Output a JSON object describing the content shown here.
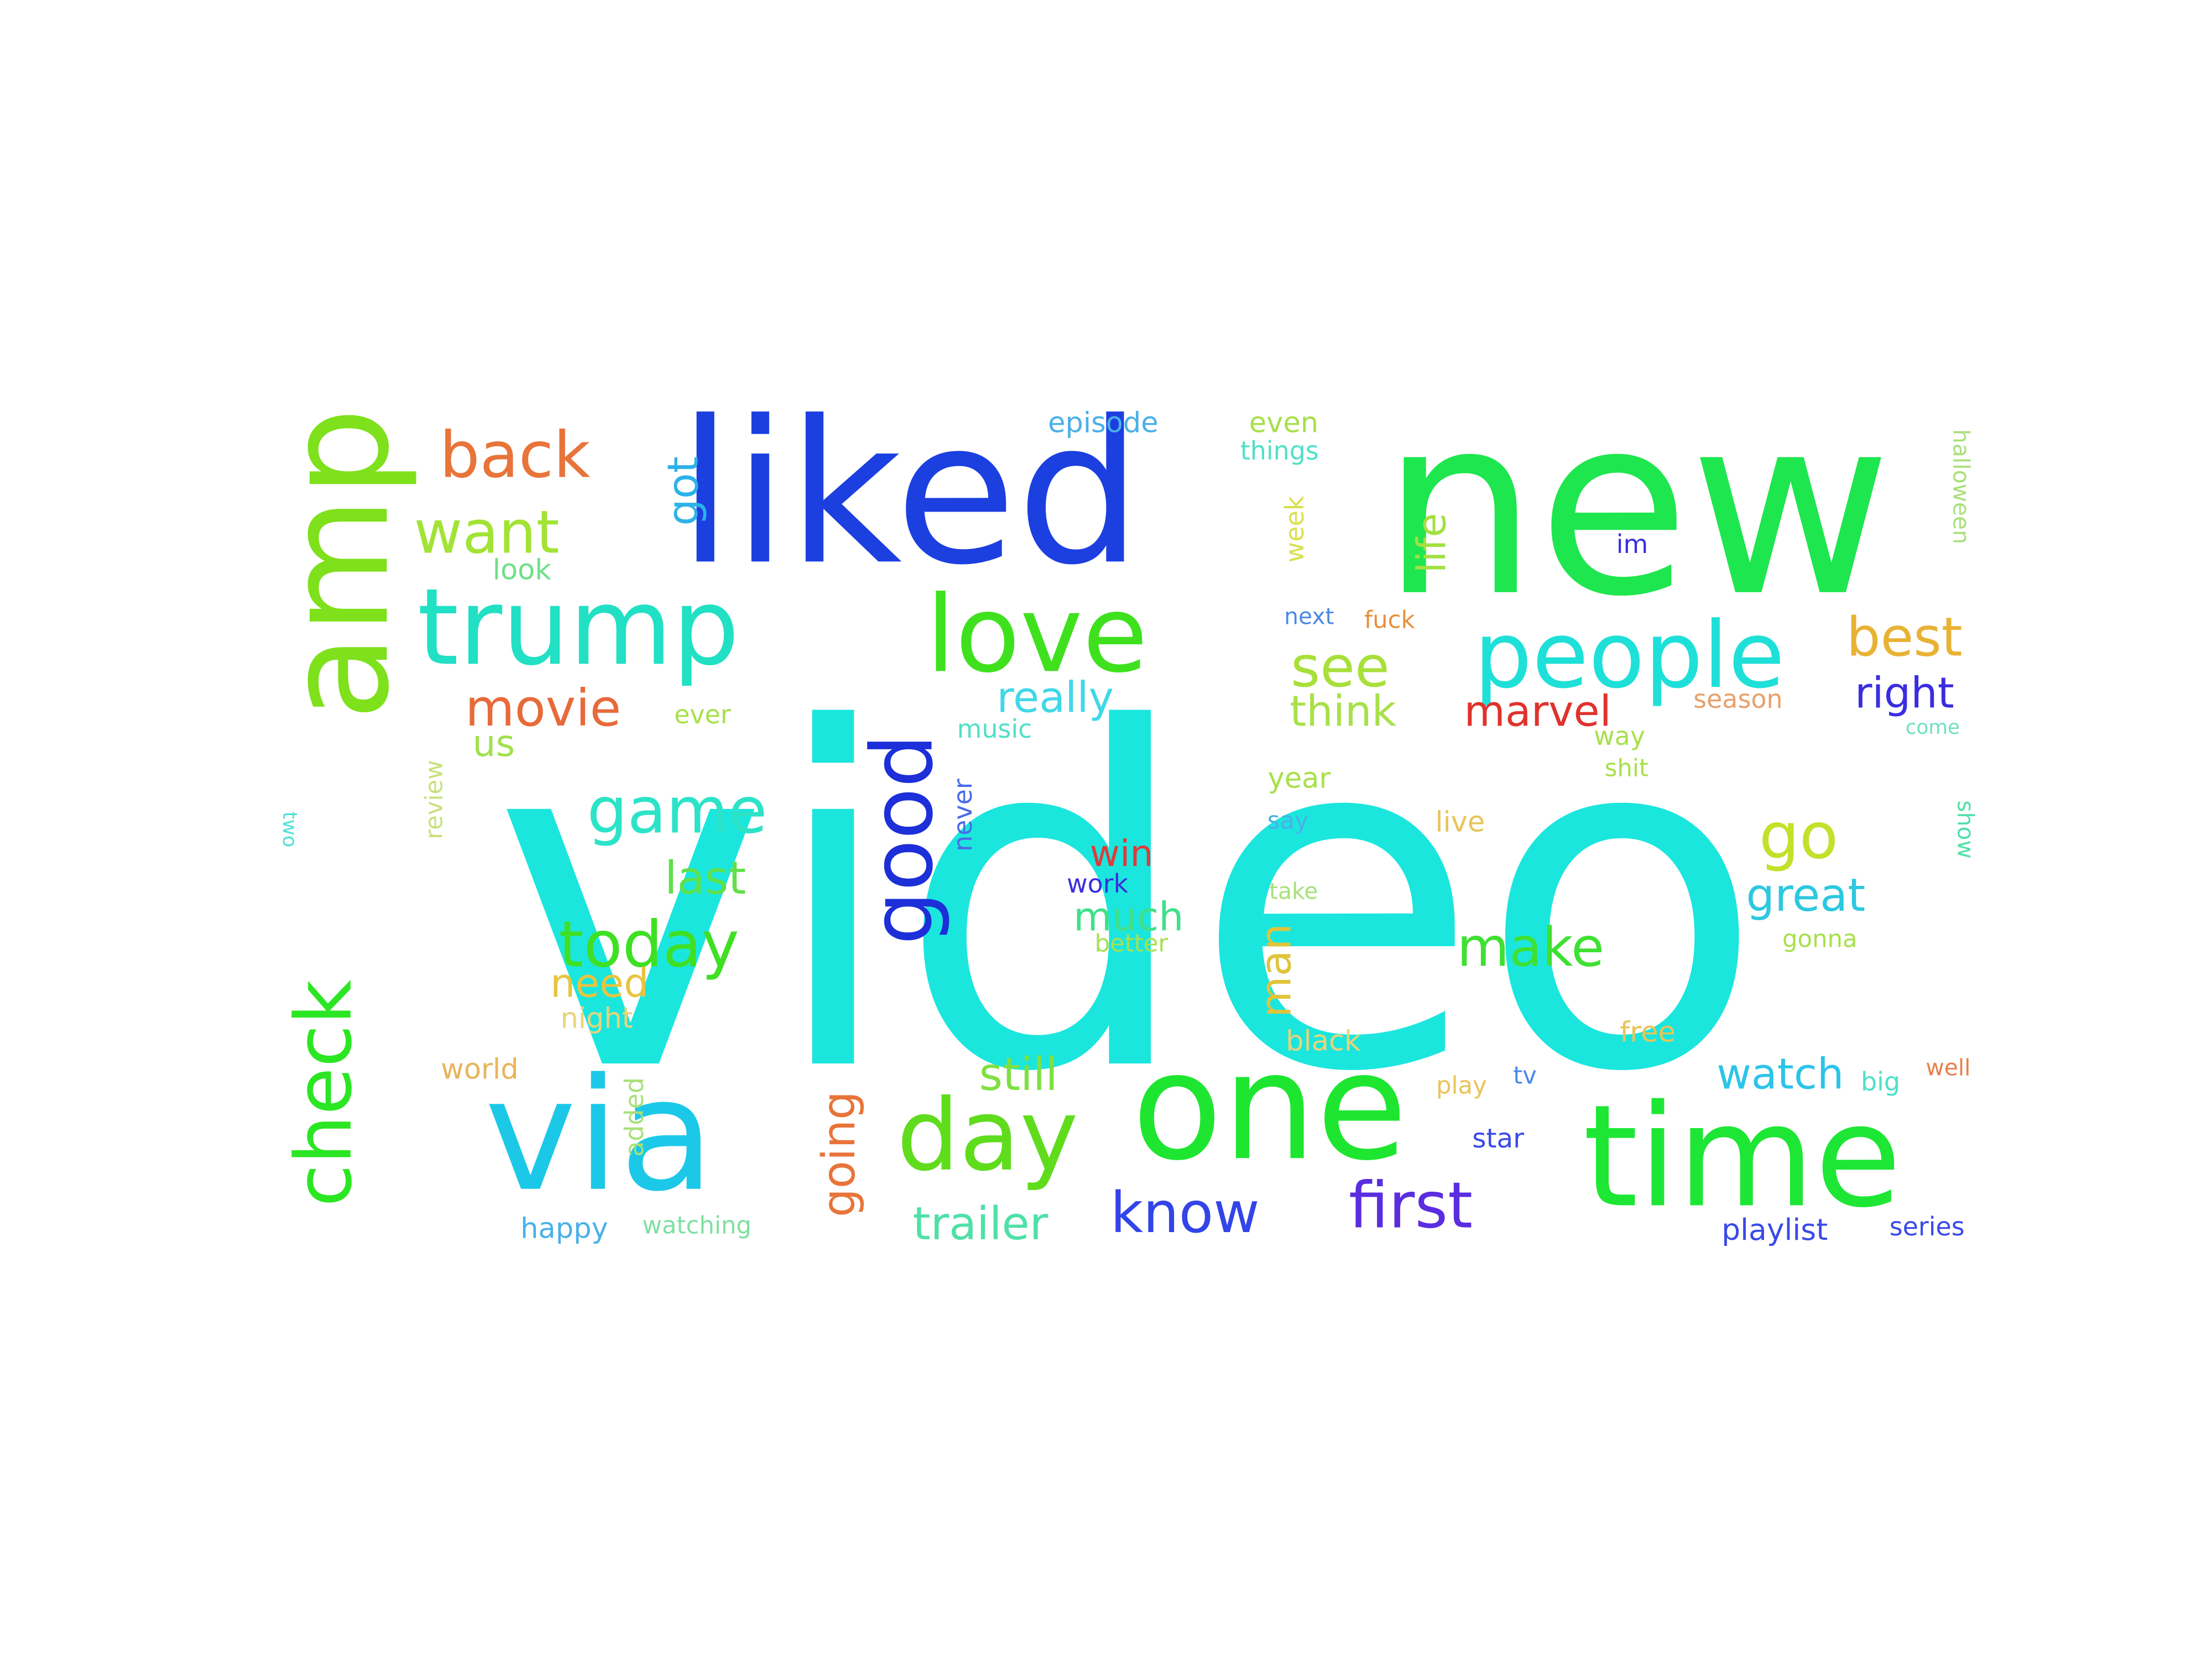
{
  "words": [
    {
      "text": "video",
      "color": "#1be6dd"
    },
    {
      "text": "new",
      "color": "#1ee64f"
    },
    {
      "text": "liked",
      "color": "#1c3fe0"
    },
    {
      "text": "amp",
      "color": "#7ee11c"
    },
    {
      "text": "one",
      "color": "#1ee630"
    },
    {
      "text": "time",
      "color": "#1ee635"
    },
    {
      "text": "via",
      "color": "#1cc8e8"
    },
    {
      "text": "trump",
      "color": "#21e0c4"
    },
    {
      "text": "people",
      "color": "#1fe0d8"
    },
    {
      "text": "love",
      "color": "#3fe11e"
    },
    {
      "text": "good",
      "color": "#1c2fd8"
    },
    {
      "text": "check",
      "color": "#2be623"
    },
    {
      "text": "day",
      "color": "#5fdc1c"
    },
    {
      "text": "back",
      "color": "#e8743a"
    },
    {
      "text": "want",
      "color": "#a2e335"
    },
    {
      "text": "game",
      "color": "#2ce3c8"
    },
    {
      "text": "today",
      "color": "#3fe024"
    },
    {
      "text": "first",
      "color": "#5a2de0"
    },
    {
      "text": "know",
      "color": "#3344e8"
    },
    {
      "text": "go",
      "color": "#c4e02b"
    },
    {
      "text": "make",
      "color": "#3fe033"
    },
    {
      "text": "best",
      "color": "#e8b234"
    },
    {
      "text": "see",
      "color": "#a8e03a"
    },
    {
      "text": "movie",
      "color": "#e86a3a"
    },
    {
      "text": "going",
      "color": "#e8743a"
    },
    {
      "text": "trailer",
      "color": "#4fe0a8"
    },
    {
      "text": "great",
      "color": "#2cc8e0"
    },
    {
      "text": "still",
      "color": "#7ee040"
    },
    {
      "text": "last",
      "color": "#5fe04a"
    },
    {
      "text": "got",
      "color": "#2cb2e8"
    },
    {
      "text": "marvel",
      "color": "#e0322c"
    },
    {
      "text": "right",
      "color": "#3a2de0"
    },
    {
      "text": "watch",
      "color": "#2cc4e8"
    },
    {
      "text": "really",
      "color": "#40d8e8"
    },
    {
      "text": "think",
      "color": "#a8e04a"
    },
    {
      "text": "man",
      "color": "#e0c43a"
    },
    {
      "text": "life",
      "color": "#a2e040"
    },
    {
      "text": "need",
      "color": "#e8c440"
    },
    {
      "text": "much",
      "color": "#3fe08a"
    },
    {
      "text": "win",
      "color": "#e03a3a"
    },
    {
      "text": "us",
      "color": "#a2e050"
    },
    {
      "text": "episode",
      "color": "#4ab0e8"
    },
    {
      "text": "even",
      "color": "#a8e04a"
    },
    {
      "text": "things",
      "color": "#4fe0c8"
    },
    {
      "text": "look",
      "color": "#6ee088"
    },
    {
      "text": "week",
      "color": "#d8e050"
    },
    {
      "text": "halloween",
      "color": "#a8e07a"
    },
    {
      "text": "im",
      "color": "#3a2de0"
    },
    {
      "text": "next",
      "color": "#4a8ae8"
    },
    {
      "text": "fuck",
      "color": "#e8903a"
    },
    {
      "text": "season",
      "color": "#e8a06a"
    },
    {
      "text": "ever",
      "color": "#a8e04a"
    },
    {
      "text": "music",
      "color": "#4fe0c8"
    },
    {
      "text": "way",
      "color": "#a8e04a"
    },
    {
      "text": "come",
      "color": "#6ee0c0"
    },
    {
      "text": "shit",
      "color": "#a8e04a"
    },
    {
      "text": "year",
      "color": "#a8e04a"
    },
    {
      "text": "review",
      "color": "#c8e07a"
    },
    {
      "text": "two",
      "color": "#4fe0d8"
    },
    {
      "text": "never",
      "color": "#4a6ae8"
    },
    {
      "text": "say",
      "color": "#4ab0e8"
    },
    {
      "text": "live",
      "color": "#e8c45a"
    },
    {
      "text": "show",
      "color": "#4fe0a8"
    },
    {
      "text": "work",
      "color": "#3a2de0"
    },
    {
      "text": "take",
      "color": "#a8e07a"
    },
    {
      "text": "better",
      "color": "#a8e050"
    },
    {
      "text": "gonna",
      "color": "#a8e04a"
    },
    {
      "text": "night",
      "color": "#e8d47a"
    },
    {
      "text": "black",
      "color": "#e8d47a"
    },
    {
      "text": "free",
      "color": "#e8c45a"
    },
    {
      "text": "world",
      "color": "#e8b45a"
    },
    {
      "text": "added",
      "color": "#a8e07a"
    },
    {
      "text": "play",
      "color": "#e8c45a"
    },
    {
      "text": "tv",
      "color": "#4a8ae8"
    },
    {
      "text": "big",
      "color": "#4fe0c8"
    },
    {
      "text": "well",
      "color": "#e8804a"
    },
    {
      "text": "star",
      "color": "#3a4ae8"
    },
    {
      "text": "happy",
      "color": "#4ab0e8"
    },
    {
      "text": "watching",
      "color": "#7ee0a0"
    },
    {
      "text": "playlist",
      "color": "#3a4ae8"
    },
    {
      "text": "series",
      "color": "#3a4ae8"
    }
  ]
}
